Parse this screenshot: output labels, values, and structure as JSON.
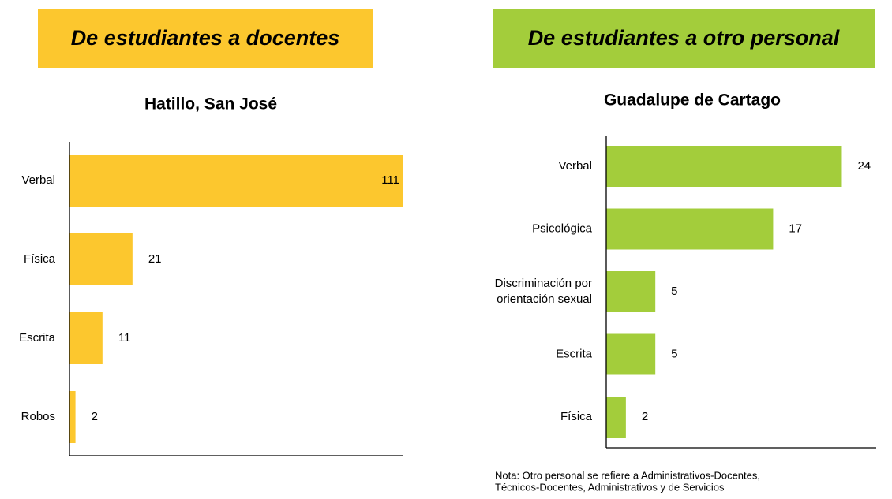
{
  "chart_data": [
    {
      "type": "bar",
      "orientation": "horizontal",
      "header": "De estudiantes a docentes",
      "title": "Hatillo, San José",
      "categories": [
        "Verbal",
        "Física",
        "Escrita",
        "Robos"
      ],
      "values": [
        111,
        21,
        11,
        2
      ],
      "color": "#fcc72e",
      "xlim": [
        0,
        111
      ]
    },
    {
      "type": "bar",
      "orientation": "horizontal",
      "header": "De estudiantes a otro personal",
      "title": "Guadalupe de Cartago",
      "categories": [
        "Verbal",
        "Psicológica",
        "Discriminación por orientación sexual",
        "Escrita",
        "Física"
      ],
      "values": [
        24,
        17,
        5,
        5,
        2
      ],
      "color": "#a3cd3b",
      "xlim": [
        0,
        27.5
      ],
      "note": [
        "Nota: Otro personal se refiere a Administrativos-Docentes,",
        "Técnicos-Docentes, Administrativos y de Servicios"
      ]
    }
  ]
}
